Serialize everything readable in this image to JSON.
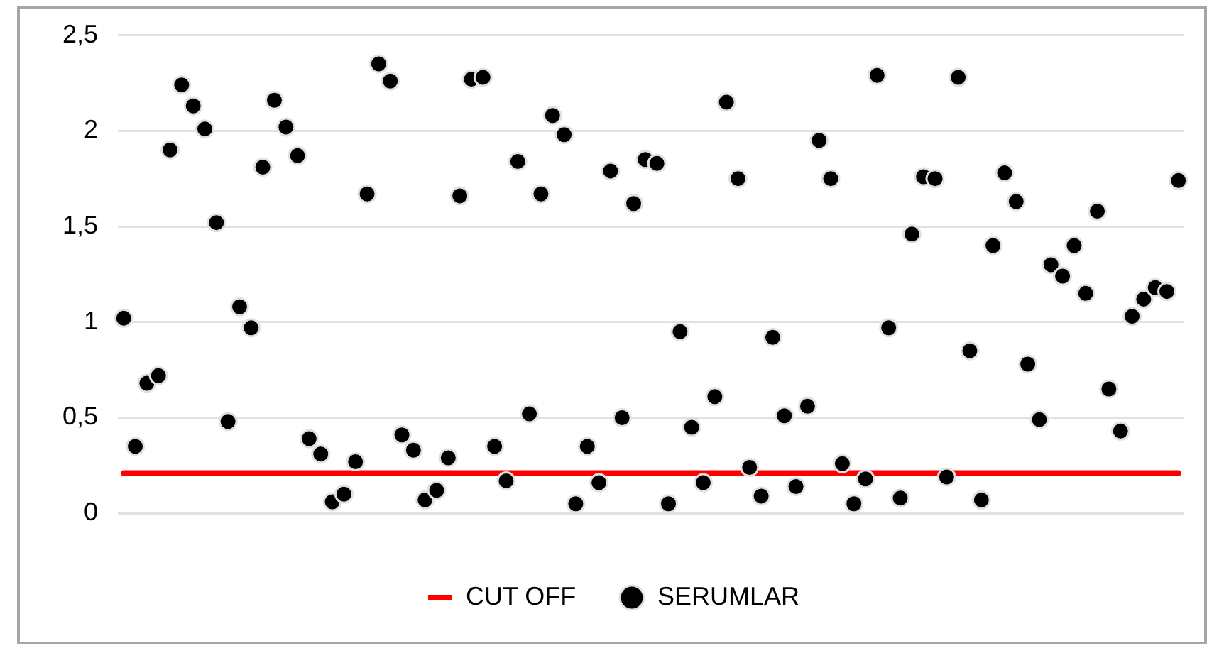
{
  "chart_data": {
    "type": "scatter",
    "categories": [
      null,
      null,
      null,
      null,
      null,
      null,
      null,
      null,
      null,
      null,
      null,
      null,
      null,
      null,
      null,
      null,
      null,
      null,
      null,
      null,
      null,
      null,
      null,
      null,
      null,
      null,
      null,
      null,
      null,
      null,
      null,
      null,
      null,
      null,
      null,
      null,
      null,
      null,
      null,
      null,
      null,
      null,
      null,
      null,
      null,
      null,
      null,
      null,
      null,
      null,
      null,
      null,
      null,
      null,
      null,
      null,
      null,
      null,
      null,
      null,
      null,
      null,
      null,
      null,
      null,
      null,
      null,
      null,
      null,
      null,
      null,
      null,
      null,
      null,
      null,
      null,
      null,
      null,
      null,
      null,
      null,
      null,
      null,
      null,
      null,
      null,
      null,
      null,
      null,
      null,
      null,
      null
    ],
    "series": [
      {
        "name": "CUT OFF",
        "type": "line",
        "color": "#ff0000",
        "values": [
          0.21,
          0.21,
          0.21,
          0.21,
          0.21,
          0.21,
          0.21,
          0.21,
          0.21,
          0.21,
          0.21,
          0.21,
          0.21,
          0.21,
          0.21,
          0.21,
          0.21,
          0.21,
          0.21,
          0.21,
          0.21,
          0.21,
          0.21,
          0.21,
          0.21,
          0.21,
          0.21,
          0.21,
          0.21,
          0.21,
          0.21,
          0.21,
          0.21,
          0.21,
          0.21,
          0.21,
          0.21,
          0.21,
          0.21,
          0.21,
          0.21,
          0.21,
          0.21,
          0.21,
          0.21,
          0.21,
          0.21,
          0.21,
          0.21,
          0.21,
          0.21,
          0.21,
          0.21,
          0.21,
          0.21,
          0.21,
          0.21,
          0.21,
          0.21,
          0.21,
          0.21,
          0.21,
          0.21,
          0.21,
          0.21,
          0.21,
          0.21,
          0.21,
          0.21,
          0.21,
          0.21,
          0.21,
          0.21,
          0.21,
          0.21,
          0.21,
          0.21,
          0.21,
          0.21,
          0.21,
          0.21,
          0.21,
          0.21,
          0.21,
          0.21,
          0.21,
          0.21,
          0.21,
          0.21,
          0.21,
          0.21,
          0.21
        ]
      },
      {
        "name": "SERUMLAR",
        "marker": "circle",
        "color": "#000000",
        "values": [
          1.02,
          0.35,
          0.68,
          0.72,
          1.9,
          2.24,
          2.13,
          2.01,
          1.52,
          0.48,
          1.08,
          0.97,
          1.81,
          2.16,
          2.02,
          1.87,
          0.39,
          0.31,
          0.06,
          0.1,
          0.27,
          1.67,
          2.35,
          2.26,
          0.41,
          0.33,
          0.07,
          0.12,
          0.29,
          1.66,
          2.27,
          2.28,
          0.35,
          0.17,
          1.84,
          0.52,
          1.67,
          2.08,
          1.98,
          0.05,
          0.35,
          0.16,
          1.79,
          0.5,
          1.62,
          1.85,
          1.83,
          0.05,
          0.95,
          0.45,
          0.16,
          0.61,
          2.15,
          1.75,
          0.24,
          0.09,
          0.92,
          0.51,
          0.14,
          0.56,
          1.95,
          1.75,
          0.26,
          0.05,
          0.18,
          2.29,
          0.97,
          0.08,
          1.46,
          1.76,
          1.75,
          0.19,
          2.28,
          0.85,
          0.07,
          1.4,
          1.78,
          1.63,
          0.78,
          0.49,
          1.3,
          1.24,
          1.4,
          1.15,
          1.58,
          0.65,
          0.43,
          1.03,
          1.12,
          1.18,
          1.16,
          1.74
        ]
      }
    ],
    "ylim": [
      0,
      2.5
    ],
    "yticks": [
      {
        "value": 0,
        "label": "0"
      },
      {
        "value": 0.5,
        "label": "0,5"
      },
      {
        "value": 1,
        "label": "1"
      },
      {
        "value": 1.5,
        "label": "1,5"
      },
      {
        "value": 2,
        "label": "2"
      },
      {
        "value": 2.5,
        "label": "2,5"
      }
    ],
    "grid": "y",
    "legend": "bottom"
  }
}
